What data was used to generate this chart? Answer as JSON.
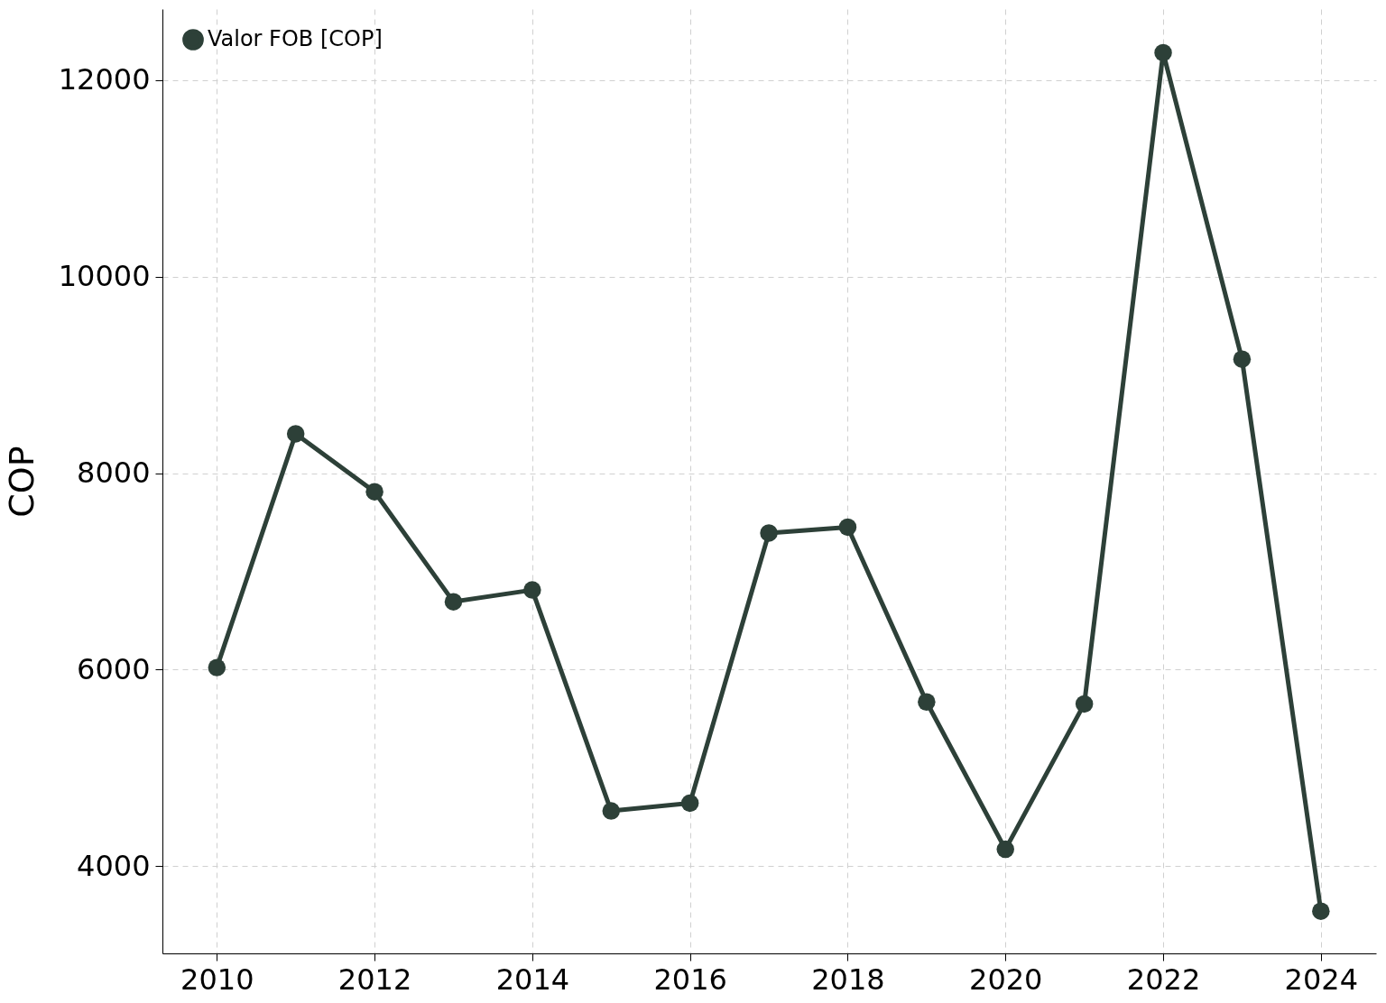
{
  "chart_data": {
    "type": "line",
    "ylabel": "COP",
    "x": [
      2010,
      2011,
      2012,
      2013,
      2014,
      2015,
      2016,
      2017,
      2018,
      2019,
      2020,
      2021,
      2022,
      2023,
      2024
    ],
    "series": [
      {
        "name": "Valor FOB [COP]",
        "color": "#2d4038",
        "values": [
          6020,
          8400,
          7810,
          6690,
          6810,
          4560,
          4640,
          7390,
          7450,
          5670,
          4170,
          5650,
          12280,
          9160,
          3540
        ]
      }
    ],
    "xlim": [
      2009.31,
      2024.7
    ],
    "xticks": [
      2010,
      2012,
      2014,
      2016,
      2018,
      2020,
      2022,
      2024
    ],
    "ylim": [
      3110,
      12725
    ],
    "yticks": [
      4000,
      6000,
      8000,
      10000,
      12000
    ],
    "grid": true,
    "legend": "top left",
    "marker": "circle",
    "line_style": "solid"
  }
}
